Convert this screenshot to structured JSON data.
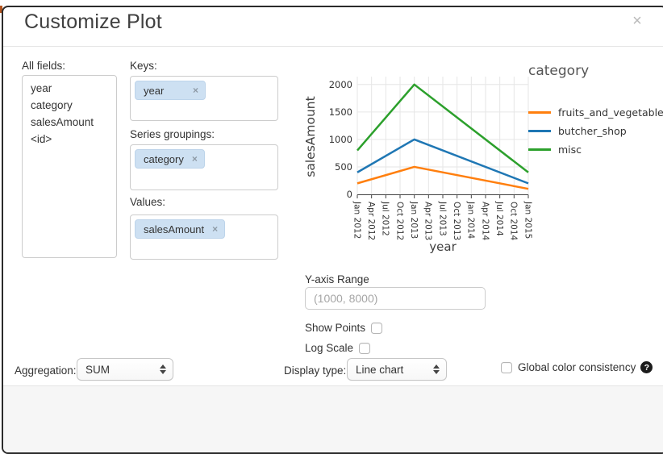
{
  "dialog": {
    "title": "Customize Plot",
    "close_glyph": "×"
  },
  "fields_panel": {
    "label": "All fields:",
    "items": [
      "year",
      "category",
      "salesAmount",
      "<id>"
    ]
  },
  "droppers": {
    "keys": {
      "label": "Keys:",
      "tags": [
        "year"
      ],
      "remove_glyph": "×"
    },
    "series_groupings": {
      "label": "Series groupings:",
      "tags": [
        "category"
      ],
      "remove_glyph": "×"
    },
    "values": {
      "label": "Values:",
      "tags": [
        "salesAmount"
      ],
      "remove_glyph": "×"
    }
  },
  "chart_data": {
    "type": "line",
    "xlabel": "year",
    "ylabel": "salesAmount",
    "legend_title": "category",
    "x_tick_labels": [
      "Jan 2012",
      "Apr 2012",
      "Jul 2012",
      "Oct 2012",
      "Jan 2013",
      "Apr 2013",
      "Jul 2013",
      "Oct 2013",
      "Jan 2014",
      "Apr 2014",
      "Jul 2014",
      "Oct 2014",
      "Jan 2015"
    ],
    "y_ticks": [
      0,
      500,
      1000,
      1500,
      2000
    ],
    "ylim": [
      0,
      2100
    ],
    "grid": true,
    "legend_position": "right",
    "grid_color": "#e6e6e6",
    "axis_color": "#444444",
    "series": [
      {
        "name": "fruits_and_vegetables",
        "color": "#ff7f0e",
        "points": [
          {
            "x": "Jan 2012",
            "y": 200
          },
          {
            "x": "Jan 2013",
            "y": 500
          },
          {
            "x": "Jan 2015",
            "y": 100
          }
        ]
      },
      {
        "name": "butcher_shop",
        "color": "#1f77b4",
        "points": [
          {
            "x": "Jan 2012",
            "y": 400
          },
          {
            "x": "Jan 2013",
            "y": 1000
          },
          {
            "x": "Jan 2015",
            "y": 200
          }
        ]
      },
      {
        "name": "misc",
        "color": "#2ca02c",
        "points": [
          {
            "x": "Jan 2012",
            "y": 800
          },
          {
            "x": "Jan 2013",
            "y": 2000
          },
          {
            "x": "Jan 2015",
            "y": 400
          }
        ]
      }
    ]
  },
  "y_axis_range": {
    "label": "Y-axis Range",
    "placeholder": "(1000, 8000)",
    "value": ""
  },
  "options": {
    "show_points": {
      "label": "Show Points",
      "checked": false
    },
    "log_scale": {
      "label": "Log Scale",
      "checked": false
    },
    "global_color": {
      "label": "Global color consistency",
      "checked": false,
      "help_glyph": "?"
    }
  },
  "aggregation": {
    "label": "Aggregation:",
    "value": "SUM"
  },
  "display_type": {
    "label": "Display type:",
    "value": "Line chart"
  }
}
